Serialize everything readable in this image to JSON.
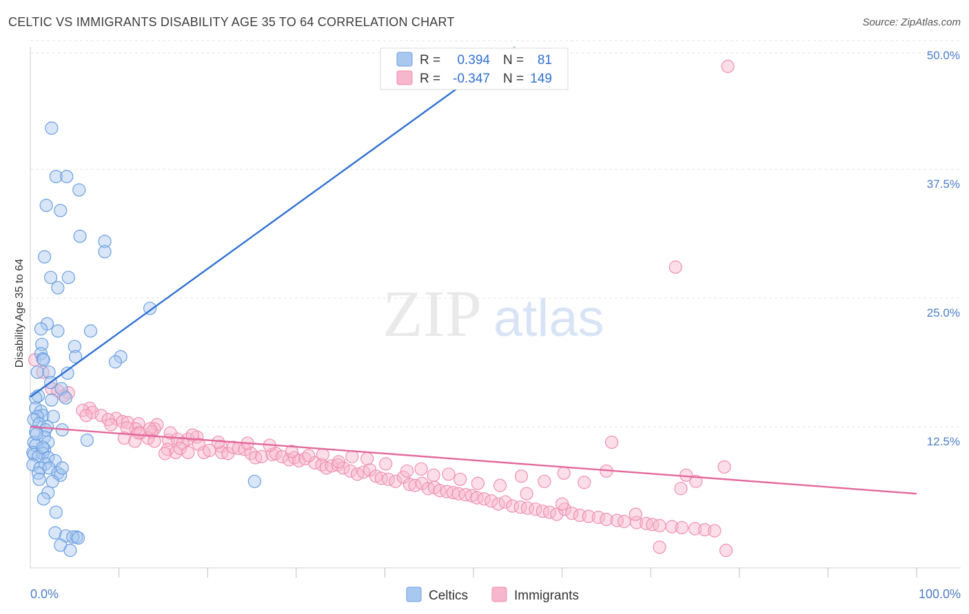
{
  "title": "CELTIC VS IMMIGRANTS DISABILITY AGE 35 TO 64 CORRELATION CHART",
  "source": "Source: ZipAtlas.com",
  "watermark": {
    "zip": "ZIP",
    "atlas": "atlas"
  },
  "legend": {
    "rows": [
      {
        "r_label": "R =",
        "r_value": "0.394",
        "n_label": "N =",
        "n_value": "81"
      },
      {
        "r_label": "R =",
        "r_value": "-0.347",
        "n_label": "N =",
        "n_value": "149"
      }
    ]
  },
  "bottom_legend": [
    {
      "label": "Celtics"
    },
    {
      "label": "Immigrants"
    }
  ],
  "colors": {
    "celtics_fill": "#a9c8f0",
    "celtics_stroke": "#6a9ee0",
    "celtics_line": "#2e6fd4",
    "immigrants_fill": "#f6b6cb",
    "immigrants_stroke": "#ef8fae",
    "immigrants_line": "#e4679a",
    "tick_text": "#4a7cc9"
  },
  "chart_data": {
    "type": "scatter",
    "ylabel": "Disability Age 35 to 64",
    "xlim": [
      0,
      100
    ],
    "ylim": [
      0,
      50
    ],
    "x_tick_labels": [
      "0.0%",
      "100.0%"
    ],
    "y_ticks": [
      12.5,
      25.0,
      37.5,
      50.0
    ],
    "y_tick_labels": [
      "12.5%",
      "25.0%",
      "37.5%",
      "50.0%"
    ],
    "grid": true,
    "series": [
      {
        "name": "Celtics",
        "r": 0.394,
        "n": 81,
        "trend": {
          "x0": 0,
          "y0": 15.4,
          "x1": 50.0,
          "y1": 46.5,
          "dashed_to_x": 55.0
        },
        "points": [
          [
            2.4,
            41.5
          ],
          [
            2.9,
            36.8
          ],
          [
            4.1,
            36.8
          ],
          [
            5.5,
            35.5
          ],
          [
            1.8,
            34.0
          ],
          [
            3.4,
            33.5
          ],
          [
            5.6,
            31.0
          ],
          [
            8.4,
            30.5
          ],
          [
            8.4,
            29.5
          ],
          [
            1.6,
            29.0
          ],
          [
            2.3,
            27.0
          ],
          [
            4.3,
            27.0
          ],
          [
            3.1,
            26.0
          ],
          [
            13.5,
            24.0
          ],
          [
            1.9,
            22.5
          ],
          [
            1.2,
            22.0
          ],
          [
            3.1,
            21.8
          ],
          [
            6.8,
            21.8
          ],
          [
            1.3,
            20.5
          ],
          [
            5.0,
            20.3
          ],
          [
            1.2,
            19.6
          ],
          [
            5.1,
            19.3
          ],
          [
            1.4,
            19.1
          ],
          [
            1.5,
            19.0
          ],
          [
            10.2,
            19.3
          ],
          [
            9.6,
            18.8
          ],
          [
            0.8,
            17.8
          ],
          [
            2.1,
            17.8
          ],
          [
            4.2,
            17.7
          ],
          [
            2.3,
            16.8
          ],
          [
            3.5,
            16.2
          ],
          [
            0.9,
            15.5
          ],
          [
            0.6,
            15.3
          ],
          [
            4.0,
            15.3
          ],
          [
            2.4,
            15.1
          ],
          [
            0.6,
            14.3
          ],
          [
            1.2,
            14.0
          ],
          [
            1.4,
            13.6
          ],
          [
            0.8,
            13.5
          ],
          [
            2.6,
            13.5
          ],
          [
            0.4,
            13.2
          ],
          [
            1.0,
            12.8
          ],
          [
            1.9,
            12.5
          ],
          [
            1.7,
            12.2
          ],
          [
            3.6,
            12.2
          ],
          [
            0.6,
            12.0
          ],
          [
            1.6,
            11.5
          ],
          [
            0.4,
            11.0
          ],
          [
            6.4,
            11.2
          ],
          [
            2.0,
            11.0
          ],
          [
            0.6,
            10.7
          ],
          [
            1.6,
            10.3
          ],
          [
            0.3,
            10.0
          ],
          [
            0.4,
            9.8
          ],
          [
            1.4,
            9.9
          ],
          [
            0.9,
            9.6
          ],
          [
            2.0,
            9.5
          ],
          [
            2.8,
            9.2
          ],
          [
            1.7,
            8.9
          ],
          [
            0.3,
            8.8
          ],
          [
            1.1,
            8.5
          ],
          [
            2.1,
            8.5
          ],
          [
            3.1,
            8.0
          ],
          [
            0.9,
            8.0
          ],
          [
            3.4,
            7.8
          ],
          [
            1.0,
            7.4
          ],
          [
            25.3,
            7.2
          ],
          [
            2.0,
            6.1
          ],
          [
            1.5,
            5.5
          ],
          [
            2.9,
            4.2
          ],
          [
            2.8,
            2.2
          ],
          [
            4.0,
            1.9
          ],
          [
            5.2,
            1.8
          ],
          [
            4.8,
            1.8
          ],
          [
            5.4,
            1.7
          ],
          [
            3.4,
            1.0
          ],
          [
            4.5,
            0.5
          ],
          [
            3.6,
            8.5
          ],
          [
            2.5,
            7.2
          ],
          [
            1.4,
            10.5
          ],
          [
            0.7,
            11.8
          ]
        ]
      },
      {
        "name": "Immigrants",
        "r": -0.347,
        "n": 149,
        "trend": {
          "x0": 0,
          "y0": 12.5,
          "x1": 100,
          "y1": 6.0
        },
        "points": [
          [
            78.7,
            47.5
          ],
          [
            72.8,
            28.0
          ],
          [
            0.5,
            19.0
          ],
          [
            1.4,
            17.8
          ],
          [
            2.4,
            16.2
          ],
          [
            4.3,
            15.8
          ],
          [
            3.1,
            16.0
          ],
          [
            3.8,
            15.5
          ],
          [
            6.7,
            14.3
          ],
          [
            5.9,
            14.1
          ],
          [
            7.0,
            13.9
          ],
          [
            6.3,
            13.6
          ],
          [
            8.0,
            13.6
          ],
          [
            9.7,
            13.3
          ],
          [
            8.8,
            13.2
          ],
          [
            10.4,
            13.0
          ],
          [
            11.0,
            12.9
          ],
          [
            9.1,
            12.7
          ],
          [
            12.2,
            12.8
          ],
          [
            11.9,
            12.3
          ],
          [
            14.3,
            12.7
          ],
          [
            14.0,
            12.3
          ],
          [
            13.7,
            12.0
          ],
          [
            10.9,
            12.4
          ],
          [
            12.2,
            11.9
          ],
          [
            12.4,
            11.9
          ],
          [
            10.6,
            11.4
          ],
          [
            13.3,
            11.4
          ],
          [
            11.8,
            11.1
          ],
          [
            14.0,
            11.1
          ],
          [
            15.6,
            11.2
          ],
          [
            16.6,
            11.3
          ],
          [
            17.8,
            11.3
          ],
          [
            18.8,
            11.5
          ],
          [
            19.0,
            10.8
          ],
          [
            17.2,
            10.9
          ],
          [
            15.5,
            10.3
          ],
          [
            16.4,
            10.0
          ],
          [
            15.2,
            9.9
          ],
          [
            16.9,
            10.4
          ],
          [
            17.8,
            10.0
          ],
          [
            19.6,
            10.0
          ],
          [
            20.2,
            10.2
          ],
          [
            21.5,
            10.6
          ],
          [
            21.6,
            10.0
          ],
          [
            22.3,
            9.9
          ],
          [
            22.9,
            10.5
          ],
          [
            23.5,
            10.4
          ],
          [
            24.2,
            10.3
          ],
          [
            24.9,
            9.9
          ],
          [
            25.4,
            9.5
          ],
          [
            26.1,
            9.6
          ],
          [
            27.3,
            9.8
          ],
          [
            27.7,
            9.9
          ],
          [
            28.4,
            9.6
          ],
          [
            29.2,
            9.3
          ],
          [
            29.8,
            9.5
          ],
          [
            30.3,
            9.2
          ],
          [
            31.0,
            9.4
          ],
          [
            32.1,
            9.0
          ],
          [
            32.9,
            8.8
          ],
          [
            33.4,
            8.5
          ],
          [
            34.0,
            8.7
          ],
          [
            34.7,
            8.8
          ],
          [
            35.3,
            8.5
          ],
          [
            36.1,
            8.2
          ],
          [
            36.9,
            7.9
          ],
          [
            37.6,
            8.1
          ],
          [
            38.3,
            8.3
          ],
          [
            39.0,
            7.7
          ],
          [
            39.6,
            7.5
          ],
          [
            40.4,
            7.4
          ],
          [
            41.2,
            7.2
          ],
          [
            42.1,
            7.6
          ],
          [
            42.8,
            6.9
          ],
          [
            43.4,
            6.8
          ],
          [
            44.2,
            7.0
          ],
          [
            44.9,
            6.5
          ],
          [
            45.6,
            6.6
          ],
          [
            46.2,
            6.3
          ],
          [
            47.0,
            6.2
          ],
          [
            47.7,
            6.1
          ],
          [
            48.3,
            6.0
          ],
          [
            49.1,
            5.9
          ],
          [
            49.8,
            5.8
          ],
          [
            50.4,
            5.6
          ],
          [
            51.2,
            5.5
          ],
          [
            52.0,
            5.3
          ],
          [
            52.8,
            5.0
          ],
          [
            53.6,
            5.2
          ],
          [
            54.4,
            4.8
          ],
          [
            55.3,
            4.7
          ],
          [
            56.1,
            4.6
          ],
          [
            57.0,
            4.5
          ],
          [
            57.8,
            4.3
          ],
          [
            58.6,
            4.2
          ],
          [
            59.4,
            4.0
          ],
          [
            60.3,
            4.5
          ],
          [
            61.1,
            4.1
          ],
          [
            62.0,
            3.9
          ],
          [
            63.0,
            3.8
          ],
          [
            64.1,
            3.7
          ],
          [
            65.0,
            3.5
          ],
          [
            66.2,
            3.4
          ],
          [
            67.0,
            3.3
          ],
          [
            68.4,
            3.2
          ],
          [
            69.5,
            3.1
          ],
          [
            70.2,
            3.0
          ],
          [
            71.0,
            2.9
          ],
          [
            72.4,
            2.8
          ],
          [
            73.5,
            2.7
          ],
          [
            75.0,
            2.6
          ],
          [
            76.1,
            2.5
          ],
          [
            77.2,
            2.4
          ],
          [
            65.6,
            11.0
          ],
          [
            68.3,
            4.0
          ],
          [
            73.4,
            6.5
          ],
          [
            74.0,
            7.8
          ],
          [
            75.1,
            7.2
          ],
          [
            78.3,
            8.6
          ],
          [
            65.0,
            8.2
          ],
          [
            60.2,
            8.0
          ],
          [
            58.0,
            7.2
          ],
          [
            55.4,
            7.7
          ],
          [
            53.0,
            6.8
          ],
          [
            50.5,
            7.0
          ],
          [
            48.5,
            7.4
          ],
          [
            47.2,
            7.9
          ],
          [
            45.5,
            7.8
          ],
          [
            44.1,
            8.4
          ],
          [
            42.5,
            8.2
          ],
          [
            40.1,
            8.9
          ],
          [
            38.0,
            9.4
          ],
          [
            36.3,
            9.6
          ],
          [
            34.8,
            9.1
          ],
          [
            33.0,
            9.8
          ],
          [
            31.4,
            9.7
          ],
          [
            29.5,
            10.1
          ],
          [
            27.0,
            10.7
          ],
          [
            24.5,
            10.9
          ],
          [
            21.2,
            11.0
          ],
          [
            18.3,
            11.7
          ],
          [
            15.8,
            11.9
          ],
          [
            13.5,
            12.3
          ],
          [
            78.5,
            0.5
          ],
          [
            71.0,
            0.8
          ],
          [
            60.0,
            5.0
          ],
          [
            56.0,
            6.0
          ],
          [
            62.5,
            7.1
          ]
        ]
      }
    ]
  }
}
